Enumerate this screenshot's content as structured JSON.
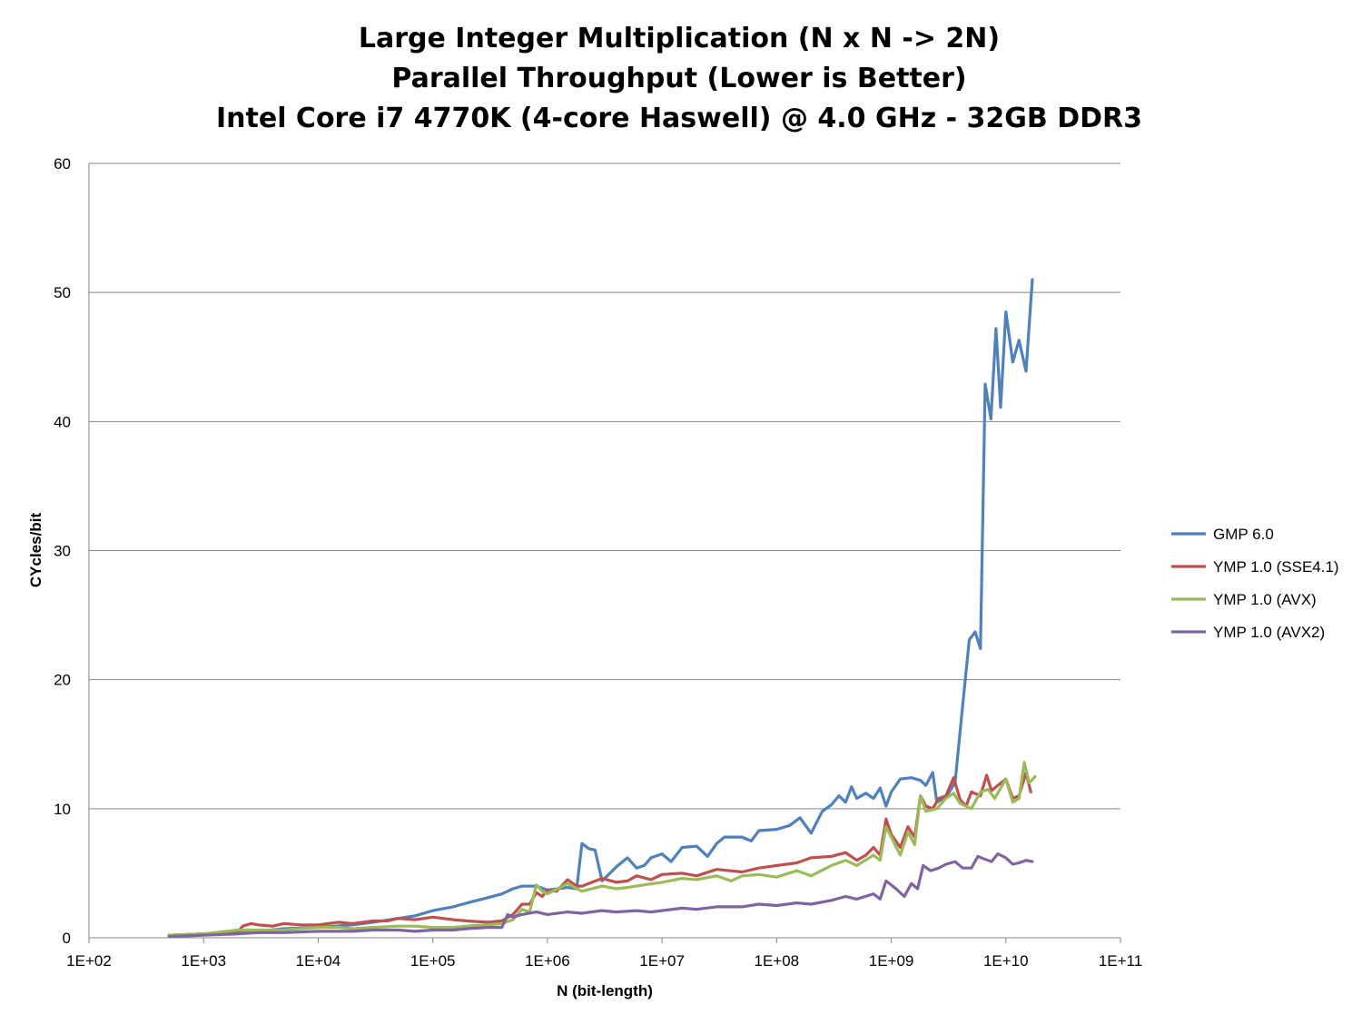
{
  "chart_data": {
    "type": "line",
    "title": [
      "Large Integer Multiplication (N x N -> 2N)",
      "Parallel Throughput (Lower is Better)",
      "Intel Core i7 4770K (4-core Haswell) @ 4.0 GHz - 32GB DDR3"
    ],
    "xlabel": "N (bit-length)",
    "ylabel": "CYcles/bit",
    "x_scale": "log",
    "xlim": [
      100,
      100000000000
    ],
    "ylim": [
      0,
      60
    ],
    "y_ticks": [
      "0",
      "10",
      "20",
      "30",
      "40",
      "50",
      "60"
    ],
    "x_ticks": [
      "1E+02",
      "1E+03",
      "1E+04",
      "1E+05",
      "1E+06",
      "1E+07",
      "1E+08",
      "1E+09",
      "1E+10",
      "1E+11"
    ],
    "grid": "horizontal",
    "legend_position": "right",
    "series": [
      {
        "name": "GMP 6.0",
        "color": "#4f81bd",
        "points": [
          [
            500,
            0.2
          ],
          [
            1000,
            0.3
          ],
          [
            2000,
            0.4
          ],
          [
            3000,
            0.5
          ],
          [
            5000,
            0.7
          ],
          [
            10000,
            0.8
          ],
          [
            20000,
            1.0
          ],
          [
            30000,
            1.2
          ],
          [
            50000,
            1.5
          ],
          [
            70000,
            1.7
          ],
          [
            100000,
            2.1
          ],
          [
            150000,
            2.4
          ],
          [
            200000,
            2.7
          ],
          [
            300000,
            3.1
          ],
          [
            400000,
            3.4
          ],
          [
            500000,
            3.8
          ],
          [
            600000,
            4.0
          ],
          [
            800000,
            4.0
          ],
          [
            1000000,
            3.7
          ],
          [
            1500000,
            3.9
          ],
          [
            1800000,
            3.8
          ],
          [
            2000000,
            7.3
          ],
          [
            2300000,
            6.9
          ],
          [
            2600000,
            6.8
          ],
          [
            3000000,
            4.4
          ],
          [
            4000000,
            5.5
          ],
          [
            5000000,
            6.2
          ],
          [
            6000000,
            5.4
          ],
          [
            7000000,
            5.6
          ],
          [
            8000000,
            6.2
          ],
          [
            10000000,
            6.5
          ],
          [
            12000000,
            5.9
          ],
          [
            15000000,
            7.0
          ],
          [
            20000000,
            7.1
          ],
          [
            25000000,
            6.3
          ],
          [
            30000000,
            7.3
          ],
          [
            35000000,
            7.8
          ],
          [
            50000000,
            7.8
          ],
          [
            60000000,
            7.5
          ],
          [
            70000000,
            8.3
          ],
          [
            100000000,
            8.4
          ],
          [
            130000000,
            8.7
          ],
          [
            160000000,
            9.3
          ],
          [
            200000000,
            8.1
          ],
          [
            250000000,
            9.8
          ],
          [
            300000000,
            10.3
          ],
          [
            350000000,
            11.0
          ],
          [
            400000000,
            10.5
          ],
          [
            450000000,
            11.7
          ],
          [
            500000000,
            10.8
          ],
          [
            600000000,
            11.2
          ],
          [
            700000000,
            10.8
          ],
          [
            800000000,
            11.6
          ],
          [
            900000000,
            10.2
          ],
          [
            1000000000,
            11.3
          ],
          [
            1200000000,
            12.3
          ],
          [
            1500000000,
            12.4
          ],
          [
            1800000000,
            12.2
          ],
          [
            2000000000,
            11.8
          ],
          [
            2300000000,
            12.8
          ],
          [
            2500000000,
            10.5
          ],
          [
            3000000000,
            10.9
          ],
          [
            3600000000,
            12.0
          ],
          [
            4200000000,
            18.0
          ],
          [
            4800000000,
            23.1
          ],
          [
            5400000000,
            23.7
          ],
          [
            6000000000,
            22.4
          ],
          [
            6600000000,
            42.9
          ],
          [
            7400000000,
            40.2
          ],
          [
            8200000000,
            47.2
          ],
          [
            9000000000,
            41.1
          ],
          [
            10000000000,
            48.5
          ],
          [
            11500000000,
            44.6
          ],
          [
            13000000000,
            46.3
          ],
          [
            15000000000,
            43.9
          ],
          [
            17000000000,
            51.0
          ]
        ]
      },
      {
        "name": "YMP 1.0 (SSE4.1)",
        "color": "#c0504d",
        "points": [
          [
            500,
            0.2
          ],
          [
            1000,
            0.3
          ],
          [
            1500,
            0.4
          ],
          [
            2000,
            0.5
          ],
          [
            2200,
            0.9
          ],
          [
            2600,
            1.1
          ],
          [
            3000,
            1.0
          ],
          [
            4000,
            0.9
          ],
          [
            5000,
            1.1
          ],
          [
            7000,
            1.0
          ],
          [
            10000,
            1.0
          ],
          [
            15000,
            1.2
          ],
          [
            20000,
            1.1
          ],
          [
            30000,
            1.3
          ],
          [
            40000,
            1.3
          ],
          [
            50000,
            1.5
          ],
          [
            70000,
            1.4
          ],
          [
            100000,
            1.6
          ],
          [
            150000,
            1.4
          ],
          [
            200000,
            1.3
          ],
          [
            300000,
            1.2
          ],
          [
            400000,
            1.3
          ],
          [
            500000,
            1.8
          ],
          [
            600000,
            2.6
          ],
          [
            700000,
            2.6
          ],
          [
            800000,
            3.5
          ],
          [
            900000,
            3.2
          ],
          [
            1000000,
            3.7
          ],
          [
            1200000,
            3.6
          ],
          [
            1500000,
            4.5
          ],
          [
            1800000,
            4.0
          ],
          [
            2000000,
            4.0
          ],
          [
            3000000,
            4.6
          ],
          [
            4000000,
            4.3
          ],
          [
            5000000,
            4.4
          ],
          [
            6000000,
            4.8
          ],
          [
            8000000,
            4.5
          ],
          [
            10000000,
            4.9
          ],
          [
            15000000,
            5.0
          ],
          [
            20000000,
            4.8
          ],
          [
            30000000,
            5.3
          ],
          [
            50000000,
            5.1
          ],
          [
            70000000,
            5.4
          ],
          [
            100000000,
            5.6
          ],
          [
            150000000,
            5.8
          ],
          [
            200000000,
            6.2
          ],
          [
            300000000,
            6.3
          ],
          [
            400000000,
            6.6
          ],
          [
            500000000,
            6.0
          ],
          [
            600000000,
            6.4
          ],
          [
            700000000,
            7.0
          ],
          [
            800000000,
            6.4
          ],
          [
            900000000,
            9.2
          ],
          [
            1000000000,
            8.0
          ],
          [
            1200000000,
            7.0
          ],
          [
            1400000000,
            8.6
          ],
          [
            1600000000,
            7.8
          ],
          [
            1800000000,
            11.0
          ],
          [
            2000000000,
            10.2
          ],
          [
            2300000000,
            10.0
          ],
          [
            2600000000,
            10.8
          ],
          [
            3000000000,
            11.0
          ],
          [
            3500000000,
            12.4
          ],
          [
            4000000000,
            10.7
          ],
          [
            4500000000,
            10.2
          ],
          [
            5000000000,
            11.3
          ],
          [
            6000000000,
            11.0
          ],
          [
            6800000000,
            12.6
          ],
          [
            7500000000,
            11.4
          ],
          [
            8500000000,
            11.8
          ],
          [
            10000000000,
            12.3
          ],
          [
            11500000000,
            10.8
          ],
          [
            13000000000,
            11.0
          ],
          [
            15000000000,
            12.8
          ],
          [
            16500000000,
            11.3
          ]
        ]
      },
      {
        "name": "YMP 1.0 (AVX)",
        "color": "#9bbb59",
        "points": [
          [
            500,
            0.2
          ],
          [
            1000,
            0.3
          ],
          [
            2000,
            0.6
          ],
          [
            3000,
            0.6
          ],
          [
            5000,
            0.6
          ],
          [
            7000,
            0.7
          ],
          [
            10000,
            0.8
          ],
          [
            15000,
            0.8
          ],
          [
            20000,
            0.7
          ],
          [
            30000,
            0.8
          ],
          [
            50000,
            0.9
          ],
          [
            70000,
            0.9
          ],
          [
            100000,
            0.8
          ],
          [
            150000,
            0.8
          ],
          [
            200000,
            0.9
          ],
          [
            300000,
            1.0
          ],
          [
            400000,
            1.1
          ],
          [
            500000,
            1.4
          ],
          [
            600000,
            2.2
          ],
          [
            700000,
            2.0
          ],
          [
            800000,
            4.1
          ],
          [
            900000,
            3.6
          ],
          [
            1000000,
            3.4
          ],
          [
            1500000,
            4.2
          ],
          [
            2000000,
            3.6
          ],
          [
            3000000,
            4.0
          ],
          [
            4000000,
            3.8
          ],
          [
            5000000,
            3.9
          ],
          [
            7000000,
            4.1
          ],
          [
            10000000,
            4.3
          ],
          [
            15000000,
            4.6
          ],
          [
            20000000,
            4.5
          ],
          [
            30000000,
            4.8
          ],
          [
            40000000,
            4.4
          ],
          [
            50000000,
            4.8
          ],
          [
            70000000,
            4.9
          ],
          [
            100000000,
            4.7
          ],
          [
            150000000,
            5.2
          ],
          [
            200000000,
            4.8
          ],
          [
            300000000,
            5.6
          ],
          [
            400000000,
            6.0
          ],
          [
            500000000,
            5.6
          ],
          [
            700000000,
            6.4
          ],
          [
            800000000,
            6.0
          ],
          [
            900000000,
            8.6
          ],
          [
            1000000000,
            7.8
          ],
          [
            1200000000,
            6.4
          ],
          [
            1400000000,
            8.2
          ],
          [
            1600000000,
            7.2
          ],
          [
            1800000000,
            11.0
          ],
          [
            2000000000,
            9.8
          ],
          [
            2500000000,
            10.0
          ],
          [
            3000000000,
            10.8
          ],
          [
            3500000000,
            11.2
          ],
          [
            4000000000,
            10.4
          ],
          [
            5000000000,
            10.0
          ],
          [
            6000000000,
            11.3
          ],
          [
            7000000000,
            11.5
          ],
          [
            8000000000,
            10.8
          ],
          [
            10000000000,
            12.3
          ],
          [
            11500000000,
            10.5
          ],
          [
            13000000000,
            10.8
          ],
          [
            14500000000,
            13.6
          ],
          [
            16000000000,
            12.0
          ],
          [
            18000000000,
            12.5
          ]
        ]
      },
      {
        "name": "YMP 1.0 (AVX2)",
        "color": "#8064a2",
        "points": [
          [
            500,
            0.1
          ],
          [
            1000,
            0.2
          ],
          [
            2000,
            0.3
          ],
          [
            3000,
            0.4
          ],
          [
            5000,
            0.4
          ],
          [
            10000,
            0.5
          ],
          [
            20000,
            0.5
          ],
          [
            30000,
            0.6
          ],
          [
            50000,
            0.6
          ],
          [
            70000,
            0.5
          ],
          [
            100000,
            0.6
          ],
          [
            150000,
            0.6
          ],
          [
            200000,
            0.7
          ],
          [
            300000,
            0.8
          ],
          [
            400000,
            0.8
          ],
          [
            450000,
            1.8
          ],
          [
            500000,
            1.6
          ],
          [
            600000,
            1.8
          ],
          [
            800000,
            2.0
          ],
          [
            1000000,
            1.8
          ],
          [
            1500000,
            2.0
          ],
          [
            2000000,
            1.9
          ],
          [
            3000000,
            2.1
          ],
          [
            4000000,
            2.0
          ],
          [
            6000000,
            2.1
          ],
          [
            8000000,
            2.0
          ],
          [
            10000000,
            2.1
          ],
          [
            15000000,
            2.3
          ],
          [
            20000000,
            2.2
          ],
          [
            30000000,
            2.4
          ],
          [
            50000000,
            2.4
          ],
          [
            70000000,
            2.6
          ],
          [
            100000000,
            2.5
          ],
          [
            150000000,
            2.7
          ],
          [
            200000000,
            2.6
          ],
          [
            300000000,
            2.9
          ],
          [
            400000000,
            3.2
          ],
          [
            500000000,
            3.0
          ],
          [
            700000000,
            3.4
          ],
          [
            800000000,
            3.0
          ],
          [
            900000000,
            4.4
          ],
          [
            1100000000,
            3.8
          ],
          [
            1300000000,
            3.2
          ],
          [
            1500000000,
            4.2
          ],
          [
            1700000000,
            3.8
          ],
          [
            1900000000,
            5.6
          ],
          [
            2200000000,
            5.2
          ],
          [
            2600000000,
            5.4
          ],
          [
            3000000000,
            5.7
          ],
          [
            3600000000,
            5.9
          ],
          [
            4200000000,
            5.4
          ],
          [
            5000000000,
            5.4
          ],
          [
            5700000000,
            6.3
          ],
          [
            6500000000,
            6.1
          ],
          [
            7500000000,
            5.9
          ],
          [
            8500000000,
            6.5
          ],
          [
            10000000000,
            6.2
          ],
          [
            11500000000,
            5.7
          ],
          [
            13000000000,
            5.8
          ],
          [
            15000000000,
            6.0
          ],
          [
            17000000000,
            5.9
          ]
        ]
      }
    ]
  }
}
